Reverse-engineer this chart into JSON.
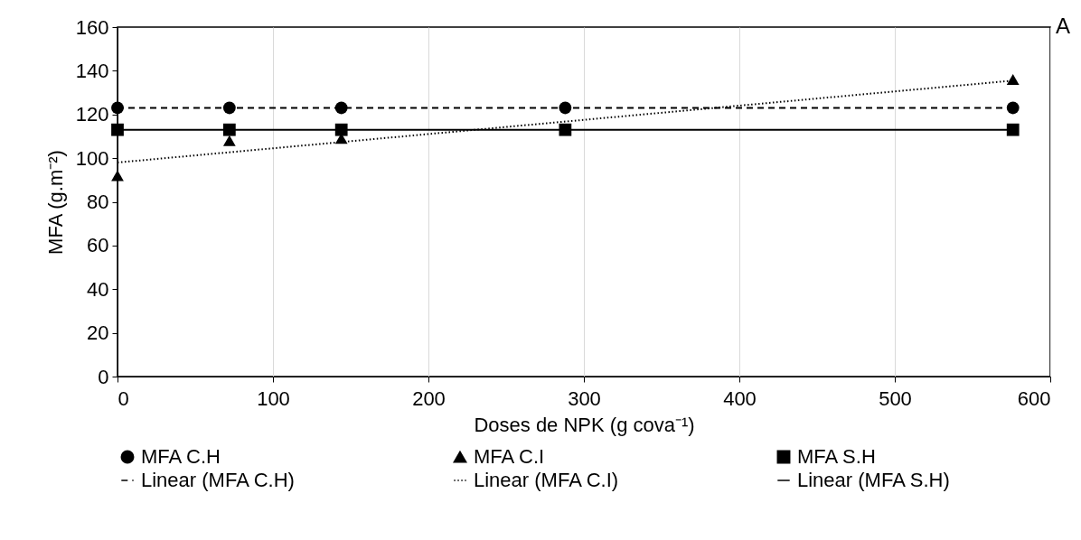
{
  "chart_data": {
    "type": "scatter",
    "xlabel": "Doses de NPK (g cova⁻¹)",
    "ylabel": "MFA (g.m⁻²)",
    "xlim": [
      0,
      600
    ],
    "xticks": [
      0,
      100,
      200,
      300,
      400,
      500,
      600
    ],
    "ylim": [
      0,
      160
    ],
    "yticks": [
      0,
      20,
      40,
      60,
      80,
      100,
      120,
      140,
      160
    ],
    "grid": "x",
    "legend": "bottom",
    "annotations": [
      "A"
    ],
    "series": [
      {
        "name": "MFA C.H",
        "type": "scatter",
        "marker": "circle",
        "color": "#000000",
        "x": [
          0,
          72,
          144,
          288,
          576
        ],
        "values": [
          123,
          123,
          123,
          123,
          123
        ]
      },
      {
        "name": "MFA C.I",
        "type": "scatter",
        "marker": "triangle",
        "color": "#000000",
        "x": [
          0,
          72,
          144,
          576
        ],
        "values": [
          92,
          108,
          109,
          136
        ]
      },
      {
        "name": "MFA S.H",
        "type": "scatter",
        "marker": "square",
        "color": "#000000",
        "x": [
          0,
          72,
          144,
          288,
          576
        ],
        "values": [
          113,
          113,
          113,
          113,
          113
        ]
      },
      {
        "name": "Linear (MFA C.H)",
        "type": "line",
        "line_style": "dashed",
        "color": "#000000",
        "x": [
          0,
          576
        ],
        "values": [
          123,
          123
        ]
      },
      {
        "name": "Linear (MFA C.I)",
        "type": "line",
        "line_style": "dotted",
        "color": "#000000",
        "x": [
          0,
          576
        ],
        "values": [
          98,
          135.5
        ]
      },
      {
        "name": "Linear (MFA S.H)",
        "type": "line",
        "line_style": "solid",
        "color": "#000000",
        "x": [
          0,
          576
        ],
        "values": [
          113,
          113
        ]
      }
    ]
  }
}
